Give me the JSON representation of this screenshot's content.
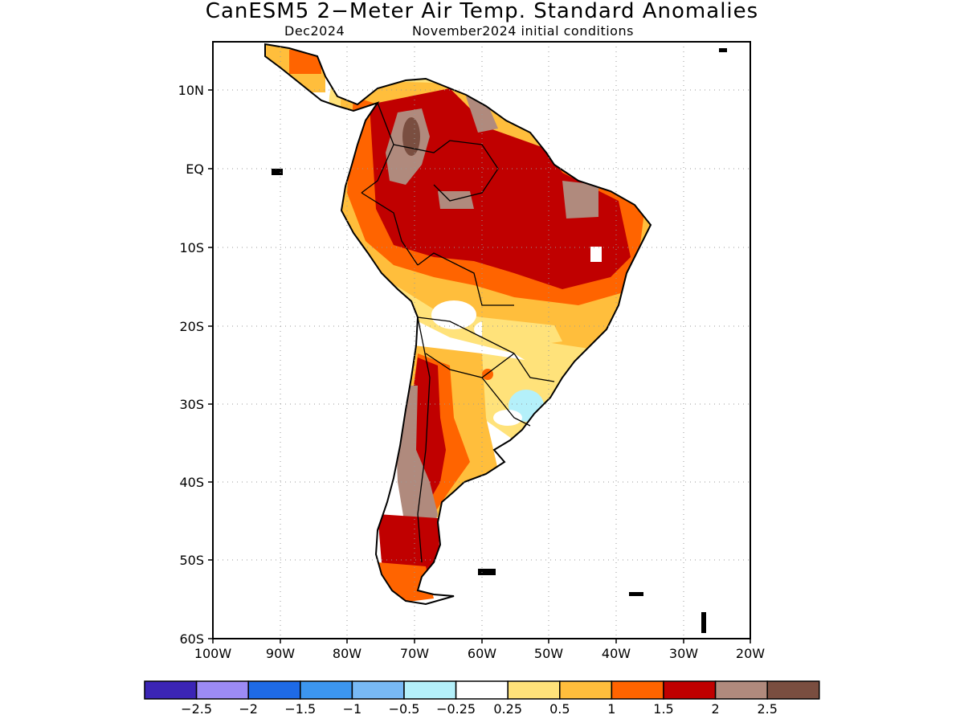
{
  "title": "CanESM5 2−Meter Air Temp. Standard Anomalies",
  "subtitle_left": "Dec2024",
  "subtitle_right": "November2024 initial conditions",
  "map": {
    "lon_range": [
      -100,
      -20
    ],
    "lat_range": [
      -60,
      15
    ],
    "lon_ticks": [
      "100W",
      "90W",
      "80W",
      "70W",
      "60W",
      "50W",
      "40W",
      "30W",
      "20W"
    ],
    "lat_ticks": [
      "10N",
      "EQ",
      "10S",
      "20S",
      "30S",
      "40S",
      "50S",
      "60S"
    ],
    "grid": "dotted"
  },
  "colorbar": {
    "colors": [
      "#3b25b5",
      "#9c8bf5",
      "#1e6ae6",
      "#3c96f0",
      "#78b9f5",
      "#b4f0fa",
      "#ffffff",
      "#ffe27a",
      "#ffbe3c",
      "#ff6400",
      "#c00000",
      "#b08a7d",
      "#7a4e40"
    ],
    "labels": [
      "−2.5",
      "−2",
      "−1.5",
      "−1",
      "−0.5",
      "−0.25",
      "0.25",
      "0.5",
      "1",
      "1.5",
      "2",
      "2.5"
    ]
  }
}
